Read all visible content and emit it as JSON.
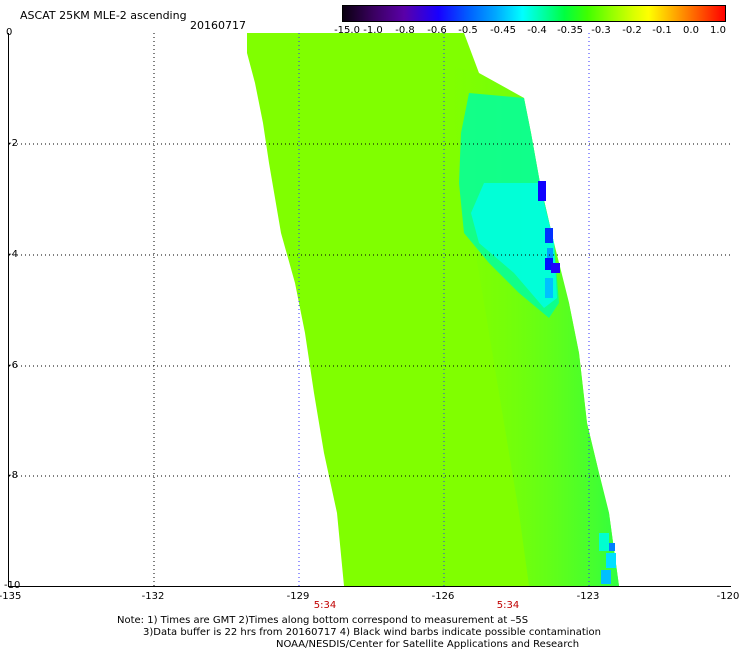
{
  "header": {
    "title": "ASCAT 25KM MLE-2 ascending",
    "date": "20160717"
  },
  "colorbar": {
    "labels": [
      "-15.0",
      "-1.0",
      "-0.8",
      "-0.6",
      "-0.5",
      "-0.45",
      "-0.4",
      "-0.35",
      "-0.3",
      "-0.2",
      "-0.1",
      "0.0",
      "1.0"
    ]
  },
  "map": {
    "x_ticks": [
      "-135",
      "-132",
      "-129",
      "-126",
      "-123",
      "-120"
    ],
    "y_ticks": [
      "0",
      "-2",
      "-4",
      "-6",
      "-8",
      "-10"
    ],
    "time_labels": [
      "5:34",
      "5:34"
    ],
    "colors": {
      "swath_green": "#80ff00",
      "near_cyan": "#00ffd0",
      "deep_blue": "#0010ff",
      "grid_black": "#000000",
      "grid_blue": "#3030ff",
      "time_red": "#c00000"
    }
  },
  "notes": {
    "line1": "Note: 1) Times are GMT 2)Times along bottom correspond to measurement at –5S",
    "line2": "3)Data buffer is 22 hrs from 20160717 4) Black wind barbs indicate possible contamination",
    "line3": "NOAA/NESDIS/Center for Satellite Applications and Research"
  }
}
